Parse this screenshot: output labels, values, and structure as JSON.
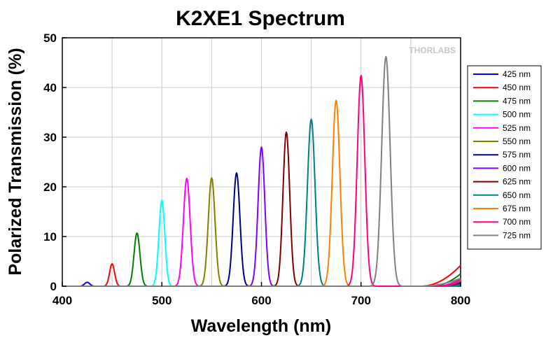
{
  "chart_data": {
    "type": "line",
    "title": "K2XE1 Spectrum",
    "xlabel": "Wavelength (nm)",
    "ylabel": "Polarized Transmission (%)",
    "xlim": [
      400,
      800
    ],
    "ylim": [
      0,
      50
    ],
    "x_ticks": [
      400,
      500,
      600,
      700,
      800
    ],
    "y_ticks": [
      0,
      10,
      20,
      30,
      40,
      50
    ],
    "grid": true,
    "legend_position": "right",
    "watermark": "THORLABS",
    "series": [
      {
        "name": "425 nm",
        "color": "#0000ff",
        "center": 425,
        "peak": 0.8,
        "fwhm": 6,
        "tail_start": 790,
        "tail_max": 0.4
      },
      {
        "name": "450 nm",
        "color": "#ff0000",
        "center": 450,
        "peak": 4.5,
        "fwhm": 6,
        "tail_start": 760,
        "tail_max": 4.2
      },
      {
        "name": "475 nm",
        "color": "#008000",
        "center": 475,
        "peak": 10.7,
        "fwhm": 7,
        "tail_start": 770,
        "tail_max": 2.5
      },
      {
        "name": "500 nm",
        "color": "#00ffff",
        "center": 500,
        "peak": 17.3,
        "fwhm": 7,
        "tail_start": 790,
        "tail_max": 0.3
      },
      {
        "name": "525 nm",
        "color": "#ff00ff",
        "center": 525,
        "peak": 21.7,
        "fwhm": 8,
        "tail_start": 775,
        "tail_max": 1.5
      },
      {
        "name": "550 nm",
        "color": "#808000",
        "center": 550,
        "peak": 21.8,
        "fwhm": 8,
        "tail_start": 780,
        "tail_max": 1.0
      },
      {
        "name": "575 nm",
        "color": "#000080",
        "center": 575,
        "peak": 22.8,
        "fwhm": 8,
        "tail_start": 780,
        "tail_max": 0.6
      },
      {
        "name": "600 nm",
        "color": "#8000ff",
        "center": 600,
        "peak": 28.0,
        "fwhm": 8,
        "tail_start": 775,
        "tail_max": 0.8
      },
      {
        "name": "625 nm",
        "color": "#800000",
        "center": 625,
        "peak": 31.0,
        "fwhm": 8,
        "tail_start": 780,
        "tail_max": 0.5
      },
      {
        "name": "650 nm",
        "color": "#008080",
        "center": 650,
        "peak": 33.6,
        "fwhm": 9,
        "tail_start": 790,
        "tail_max": 0.4
      },
      {
        "name": "675 nm",
        "color": "#ff8000",
        "center": 675,
        "peak": 37.4,
        "fwhm": 9,
        "tail_start": 780,
        "tail_max": 1.3
      },
      {
        "name": "700 nm",
        "color": "#ff0080",
        "center": 700,
        "peak": 42.4,
        "fwhm": 9,
        "tail_start": 780,
        "tail_max": 1.4
      },
      {
        "name": "725 nm",
        "color": "#808080",
        "center": 725,
        "peak": 46.2,
        "fwhm": 10,
        "tail_start": 760,
        "tail_max": 1.6
      }
    ]
  }
}
